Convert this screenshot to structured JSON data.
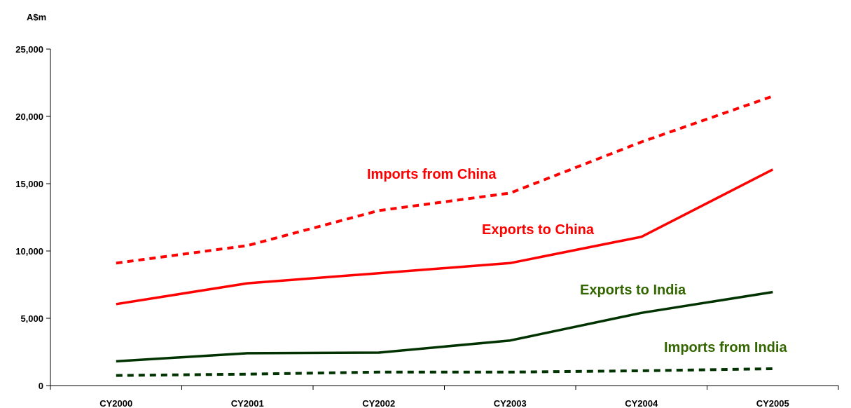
{
  "chart_data": {
    "type": "line",
    "ylabel": "A$m",
    "ylim": [
      0,
      25000
    ],
    "yticks": [
      0,
      5000,
      10000,
      15000,
      20000,
      25000
    ],
    "ytick_labels": [
      "0",
      "5,000",
      "10,000",
      "15,000",
      "20,000",
      "25,000"
    ],
    "categories": [
      "CY2000",
      "CY2001",
      "CY2002",
      "CY2003",
      "CY2004",
      "CY2005"
    ],
    "grid": false,
    "series": [
      {
        "name": "Imports from China",
        "values": [
          9100,
          10400,
          13000,
          14300,
          18100,
          21500
        ],
        "color": "#ff0000",
        "style": "dashed"
      },
      {
        "name": "Exports to China",
        "values": [
          6050,
          7600,
          8350,
          9100,
          11050,
          16050
        ],
        "color": "#ff0000",
        "style": "solid"
      },
      {
        "name": "Exports to India",
        "values": [
          1800,
          2400,
          2450,
          3350,
          5400,
          6950
        ],
        "color": "#003300",
        "style": "solid"
      },
      {
        "name": "Imports from India",
        "values": [
          750,
          850,
          1000,
          1000,
          1100,
          1250
        ],
        "color": "#003300",
        "style": "dashed"
      }
    ],
    "label_colors": [
      "#ff0000",
      "#ff0000",
      "#336600",
      "#336600"
    ]
  }
}
